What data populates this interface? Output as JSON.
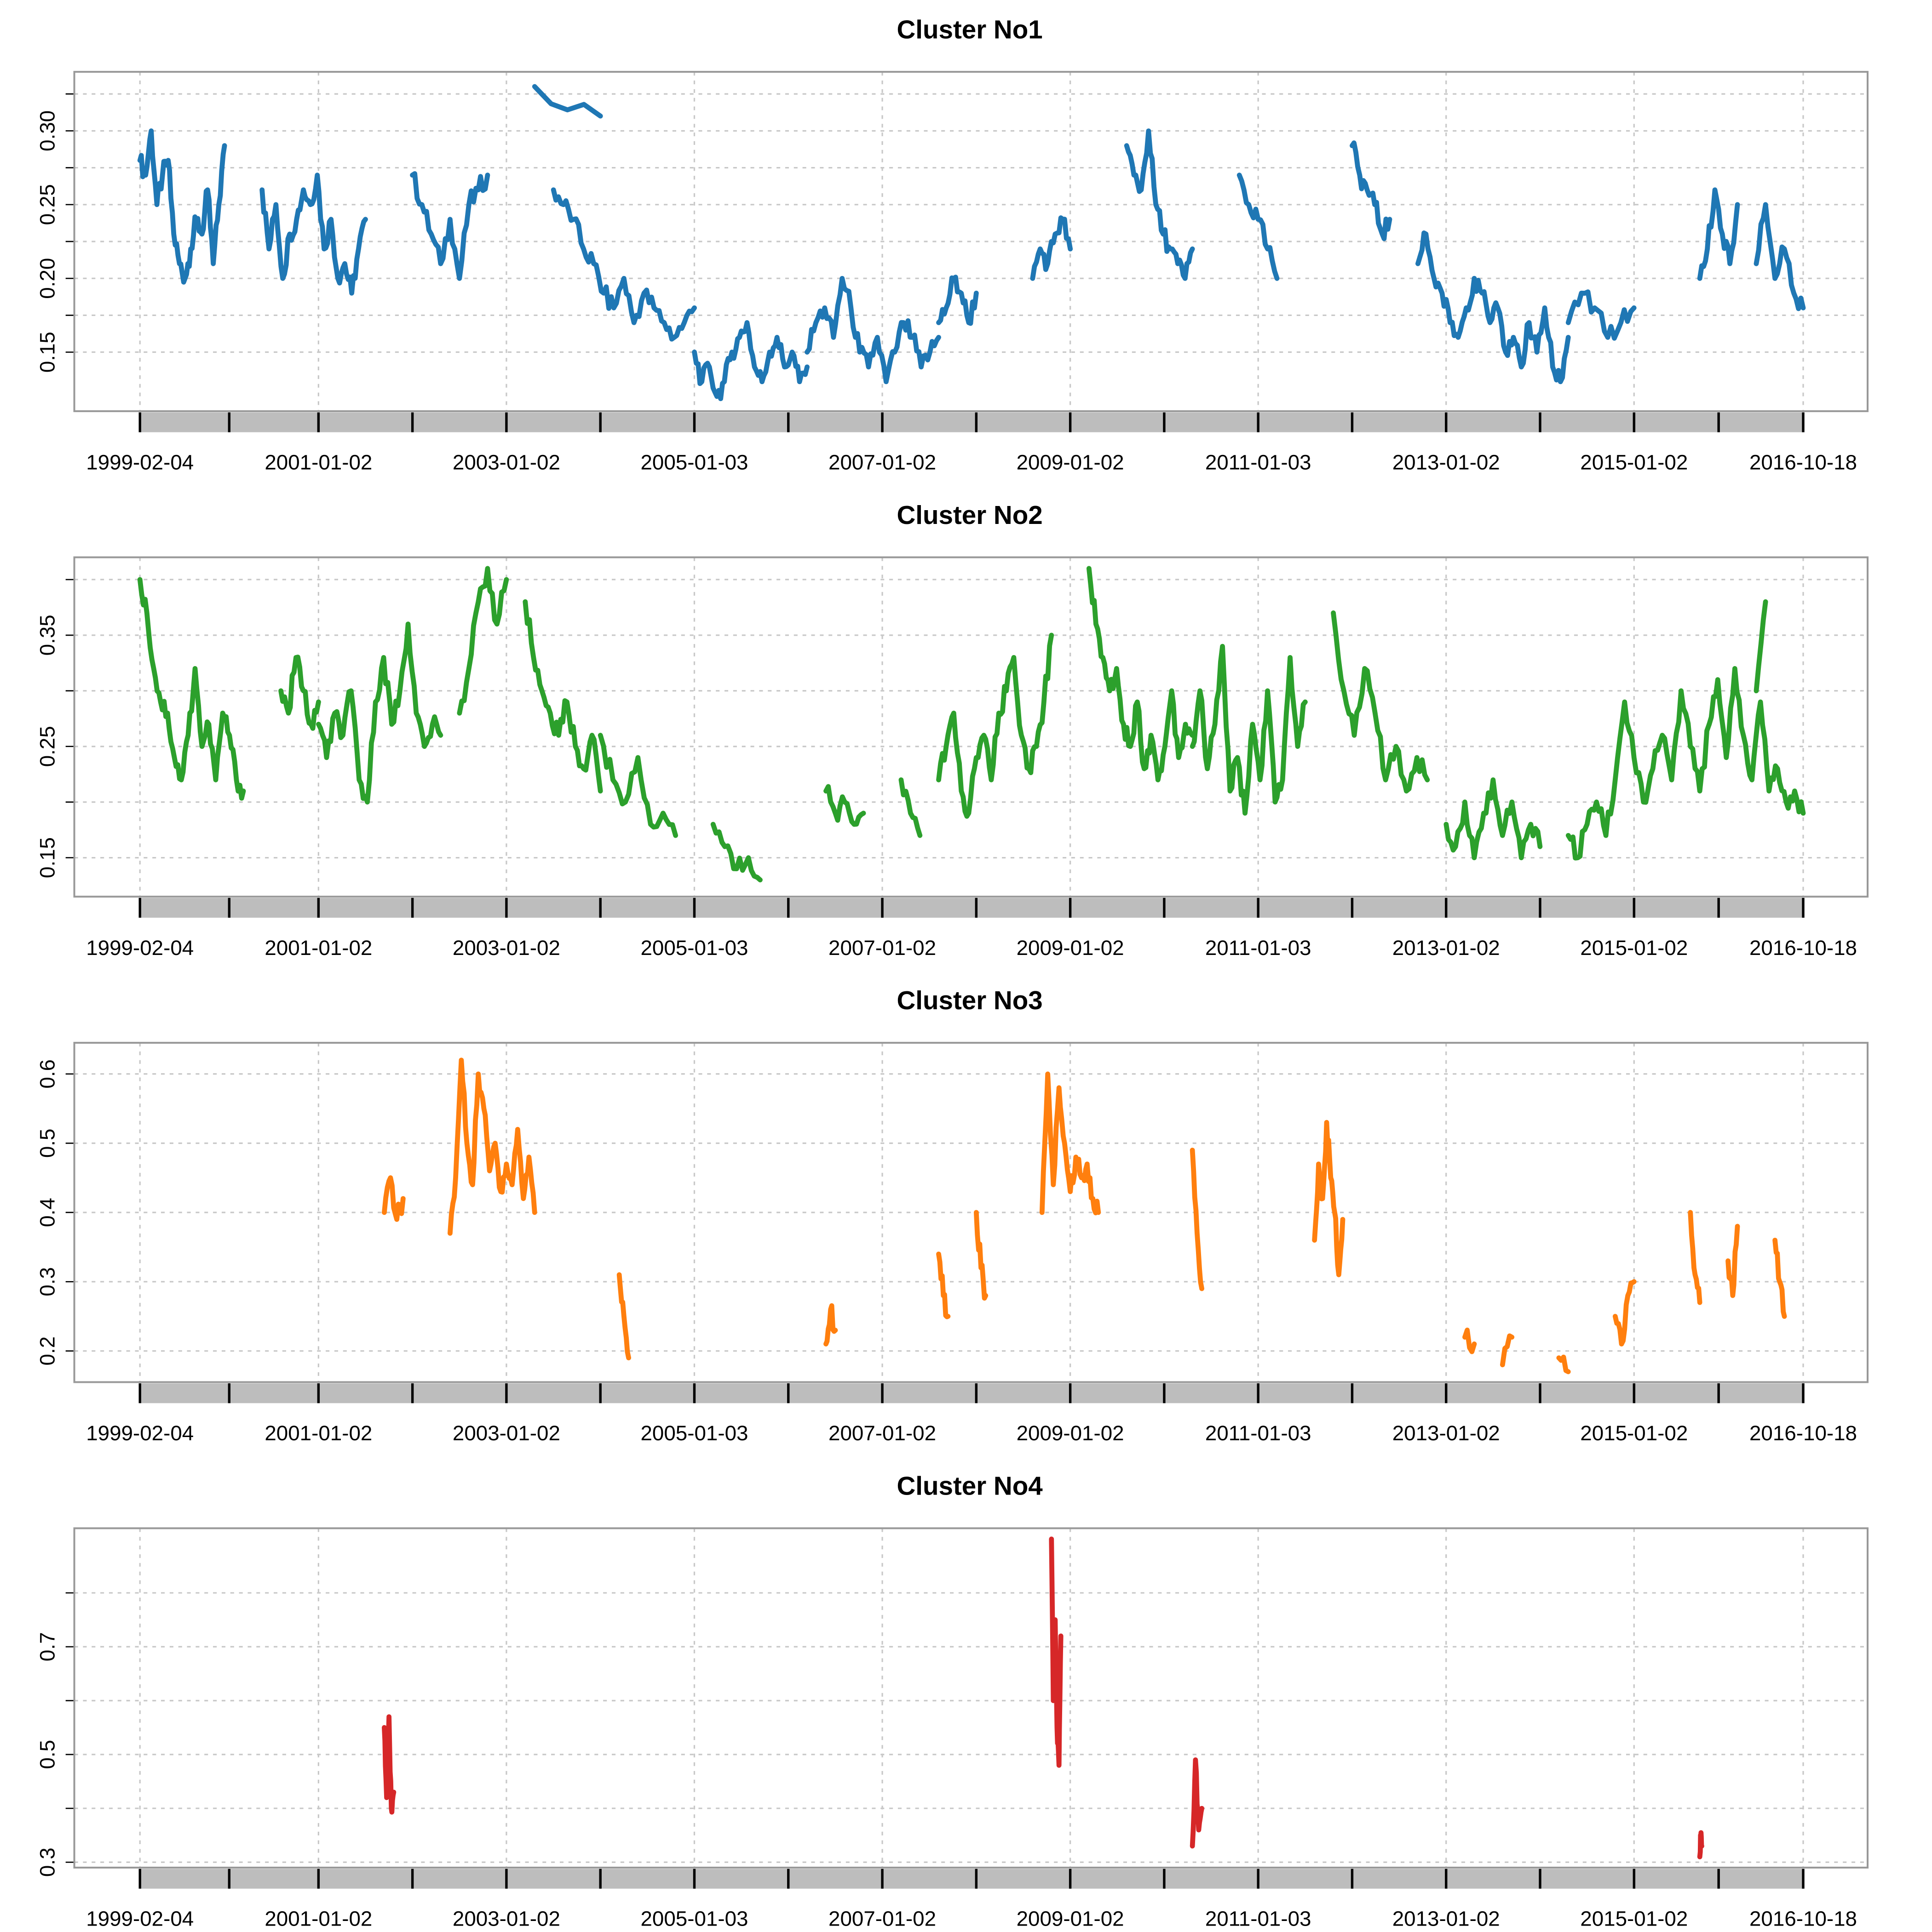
{
  "chart_data": [
    {
      "type": "line",
      "title": "Cluster No1",
      "color": "#1f77b4",
      "ylim": [
        0.11,
        0.34
      ],
      "yticks": [
        "0.15",
        "0.20",
        "0.25",
        "0.30"
      ],
      "xticks": [
        "1999-02-04",
        "2001-01-02",
        "2003-01-02",
        "2005-01-03",
        "2007-01-02",
        "2009-01-02",
        "2011-01-03",
        "2013-01-02",
        "2015-01-02",
        "2016-10-18"
      ],
      "segments": [
        {
          "start": 1999.1,
          "end": 2000.0,
          "y": [
            0.28,
            0.27,
            0.3,
            0.25,
            0.27,
            0.28,
            0.23,
            0.21,
            0.2,
            0.22,
            0.24,
            0.23,
            0.26,
            0.21,
            0.25,
            0.29
          ]
        },
        {
          "start": 2000.4,
          "end": 2001.5,
          "y": [
            0.26,
            0.22,
            0.25,
            0.2,
            0.23,
            0.24,
            0.26,
            0.25,
            0.27,
            0.22,
            0.24,
            0.2,
            0.21,
            0.19,
            0.22,
            0.24
          ]
        },
        {
          "start": 2002.0,
          "end": 2002.8,
          "y": [
            0.27,
            0.25,
            0.23,
            0.21,
            0.24,
            0.2,
            0.25,
            0.26,
            0.27
          ]
        },
        {
          "start": 2003.3,
          "end": 2004.0,
          "y": [
            0.33,
            0.31
          ]
        },
        {
          "start": 2003.5,
          "end": 2005.0,
          "y": [
            0.26,
            0.25,
            0.24,
            0.22,
            0.21,
            0.19,
            0.18,
            0.2,
            0.17,
            0.19,
            0.18,
            0.17,
            0.16,
            0.17,
            0.18
          ]
        },
        {
          "start": 2005.0,
          "end": 2006.2,
          "y": [
            0.15,
            0.13,
            0.14,
            0.12,
            0.13,
            0.15,
            0.16,
            0.17,
            0.14,
            0.13,
            0.15,
            0.16,
            0.14,
            0.15,
            0.13,
            0.14
          ]
        },
        {
          "start": 2006.2,
          "end": 2007.6,
          "y": [
            0.15,
            0.17,
            0.18,
            0.16,
            0.2,
            0.18,
            0.15,
            0.14,
            0.16,
            0.13,
            0.15,
            0.17,
            0.16,
            0.14,
            0.15,
            0.16
          ]
        },
        {
          "start": 2007.6,
          "end": 2008.0,
          "y": [
            0.17,
            0.18,
            0.2,
            0.19,
            0.17,
            0.19
          ]
        },
        {
          "start": 2008.6,
          "end": 2009.0,
          "y": [
            0.2,
            0.22,
            0.21,
            0.23,
            0.24,
            0.22
          ]
        },
        {
          "start": 2009.6,
          "end": 2010.3,
          "y": [
            0.29,
            0.27,
            0.26,
            0.3,
            0.25,
            0.23,
            0.22,
            0.21,
            0.2,
            0.22
          ]
        },
        {
          "start": 2010.8,
          "end": 2011.2,
          "y": [
            0.27,
            0.25,
            0.24,
            0.22,
            0.2
          ]
        },
        {
          "start": 2012.0,
          "end": 2012.4,
          "y": [
            0.29,
            0.27,
            0.26,
            0.25,
            0.23,
            0.24
          ]
        },
        {
          "start": 2012.7,
          "end": 2013.3,
          "y": [
            0.21,
            0.23,
            0.2,
            0.19,
            0.17,
            0.16,
            0.18,
            0.2
          ]
        },
        {
          "start": 2013.3,
          "end": 2014.3,
          "y": [
            0.2,
            0.19,
            0.17,
            0.18,
            0.15,
            0.16,
            0.14,
            0.17,
            0.15,
            0.18,
            0.14,
            0.13,
            0.16
          ]
        },
        {
          "start": 2014.3,
          "end": 2015.0,
          "y": [
            0.17,
            0.19,
            0.18,
            0.16,
            0.17,
            0.18
          ]
        },
        {
          "start": 2015.7,
          "end": 2016.1,
          "y": [
            0.2,
            0.22,
            0.26,
            0.23,
            0.21,
            0.25
          ]
        },
        {
          "start": 2016.3,
          "end": 2016.8,
          "y": [
            0.21,
            0.25,
            0.2,
            0.22,
            0.19,
            0.18
          ]
        }
      ]
    },
    {
      "type": "line",
      "title": "Cluster No2",
      "color": "#2ca02c",
      "ylim": [
        0.115,
        0.42
      ],
      "yticks": [
        "0.15",
        "0.25",
        "0.35"
      ],
      "xticks": [
        "1999-02-04",
        "2001-01-02",
        "2003-01-02",
        "2005-01-03",
        "2007-01-02",
        "2009-01-02",
        "2011-01-03",
        "2013-01-02",
        "2015-01-02",
        "2016-10-18"
      ],
      "segments": [
        {
          "start": 1999.1,
          "end": 2000.2,
          "y": [
            0.4,
            0.37,
            0.32,
            0.29,
            0.28,
            0.24,
            0.22,
            0.26,
            0.32,
            0.25,
            0.27,
            0.22,
            0.28,
            0.26,
            0.22,
            0.21
          ]
        },
        {
          "start": 2000.6,
          "end": 2001.0,
          "y": [
            0.3,
            0.28,
            0.33,
            0.3,
            0.27,
            0.29
          ]
        },
        {
          "start": 2001.0,
          "end": 2002.3,
          "y": [
            0.27,
            0.24,
            0.28,
            0.26,
            0.3,
            0.22,
            0.2,
            0.29,
            0.33,
            0.27,
            0.3,
            0.36,
            0.28,
            0.25,
            0.27,
            0.26
          ]
        },
        {
          "start": 2002.5,
          "end": 2003.0,
          "y": [
            0.28,
            0.32,
            0.38,
            0.41,
            0.36,
            0.4
          ]
        },
        {
          "start": 2003.2,
          "end": 2004.0,
          "y": [
            0.38,
            0.33,
            0.3,
            0.28,
            0.26,
            0.29,
            0.25,
            0.23,
            0.26,
            0.21
          ]
        },
        {
          "start": 2004.0,
          "end": 2004.8,
          "y": [
            0.26,
            0.22,
            0.2,
            0.24,
            0.18,
            0.19,
            0.17
          ]
        },
        {
          "start": 2005.2,
          "end": 2005.7,
          "y": [
            0.18,
            0.16,
            0.14,
            0.15,
            0.13
          ]
        },
        {
          "start": 2006.4,
          "end": 2006.8,
          "y": [
            0.21,
            0.19,
            0.2,
            0.18,
            0.19
          ]
        },
        {
          "start": 2007.2,
          "end": 2007.4,
          "y": [
            0.22,
            0.19,
            0.17
          ]
        },
        {
          "start": 2007.6,
          "end": 2008.8,
          "y": [
            0.22,
            0.25,
            0.28,
            0.21,
            0.19,
            0.24,
            0.26,
            0.22,
            0.28,
            0.3,
            0.33,
            0.26,
            0.23,
            0.25,
            0.29,
            0.35
          ]
        },
        {
          "start": 2009.2,
          "end": 2010.3,
          "y": [
            0.41,
            0.36,
            0.33,
            0.3,
            0.32,
            0.27,
            0.25,
            0.29,
            0.23,
            0.26,
            0.22,
            0.25,
            0.3,
            0.24,
            0.27,
            0.26
          ]
        },
        {
          "start": 2010.3,
          "end": 2011.5,
          "y": [
            0.25,
            0.3,
            0.23,
            0.27,
            0.34,
            0.21,
            0.24,
            0.19,
            0.27,
            0.22,
            0.3,
            0.2,
            0.22,
            0.33,
            0.25,
            0.29
          ]
        },
        {
          "start": 2011.8,
          "end": 2012.8,
          "y": [
            0.37,
            0.3,
            0.26,
            0.32,
            0.28,
            0.22,
            0.25,
            0.21,
            0.24,
            0.22
          ]
        },
        {
          "start": 2013.0,
          "end": 2014.0,
          "y": [
            0.18,
            0.16,
            0.2,
            0.15,
            0.19,
            0.22,
            0.17,
            0.2,
            0.15,
            0.18,
            0.16
          ]
        },
        {
          "start": 2014.3,
          "end": 2015.8,
          "y": [
            0.17,
            0.15,
            0.18,
            0.2,
            0.17,
            0.22,
            0.29,
            0.24,
            0.2,
            0.23,
            0.26,
            0.22,
            0.3,
            0.25,
            0.21,
            0.27
          ]
        },
        {
          "start": 2015.8,
          "end": 2016.8,
          "y": [
            0.27,
            0.31,
            0.24,
            0.32,
            0.26,
            0.22,
            0.29,
            0.21,
            0.23,
            0.2,
            0.21,
            0.19
          ]
        },
        {
          "start": 2016.3,
          "end": 2016.4,
          "y": [
            0.3,
            0.38
          ]
        }
      ]
    },
    {
      "type": "line",
      "title": "Cluster No3",
      "color": "#ff7f0e",
      "ylim": [
        0.155,
        0.645
      ],
      "yticks": [
        "0.2",
        "0.3",
        "0.4",
        "0.5",
        "0.6"
      ],
      "xticks": [
        "1999-02-04",
        "2001-01-02",
        "2003-01-02",
        "2005-01-03",
        "2007-01-02",
        "2009-01-02",
        "2011-01-03",
        "2013-01-02",
        "2015-01-02",
        "2016-10-18"
      ],
      "segments": [
        {
          "start": 2001.7,
          "end": 2001.9,
          "y": [
            0.4,
            0.45,
            0.39,
            0.42
          ]
        },
        {
          "start": 2002.4,
          "end": 2003.3,
          "y": [
            0.37,
            0.45,
            0.62,
            0.5,
            0.44,
            0.6,
            0.55,
            0.46,
            0.5,
            0.43,
            0.47,
            0.44,
            0.52,
            0.42,
            0.48,
            0.4
          ]
        },
        {
          "start": 2004.2,
          "end": 2004.3,
          "y": [
            0.31,
            0.25,
            0.19
          ]
        },
        {
          "start": 2006.4,
          "end": 2006.5,
          "y": [
            0.21,
            0.26,
            0.23
          ]
        },
        {
          "start": 2007.6,
          "end": 2007.7,
          "y": [
            0.34,
            0.28,
            0.25
          ]
        },
        {
          "start": 2008.0,
          "end": 2008.1,
          "y": [
            0.4,
            0.32,
            0.28
          ]
        },
        {
          "start": 2008.7,
          "end": 2009.3,
          "y": [
            0.4,
            0.6,
            0.44,
            0.58,
            0.5,
            0.43,
            0.48,
            0.45,
            0.47,
            0.42,
            0.4
          ]
        },
        {
          "start": 2010.3,
          "end": 2010.4,
          "y": [
            0.49,
            0.37,
            0.29
          ]
        },
        {
          "start": 2011.6,
          "end": 2011.9,
          "y": [
            0.36,
            0.47,
            0.42,
            0.53,
            0.45,
            0.4,
            0.31,
            0.39
          ]
        },
        {
          "start": 2013.2,
          "end": 2013.3,
          "y": [
            0.22,
            0.21
          ]
        },
        {
          "start": 2013.6,
          "end": 2013.7,
          "y": [
            0.18,
            0.22
          ]
        },
        {
          "start": 2014.2,
          "end": 2014.3,
          "y": [
            0.19,
            0.17
          ]
        },
        {
          "start": 2014.8,
          "end": 2015.0,
          "y": [
            0.25,
            0.21,
            0.28,
            0.3
          ]
        },
        {
          "start": 2015.6,
          "end": 2015.7,
          "y": [
            0.4,
            0.31,
            0.27
          ]
        },
        {
          "start": 2016.0,
          "end": 2016.1,
          "y": [
            0.33,
            0.28,
            0.38
          ]
        },
        {
          "start": 2016.5,
          "end": 2016.6,
          "y": [
            0.36,
            0.3,
            0.25
          ]
        }
      ]
    },
    {
      "type": "line",
      "title": "Cluster No4",
      "color": "#d62728",
      "ylim": [
        0.29,
        0.92
      ],
      "yticks": [
        "0.3",
        "0.5",
        "0.7"
      ],
      "xticks": [
        "1999-02-04",
        "2001-01-02",
        "2003-01-02",
        "2005-01-03",
        "2007-01-02",
        "2009-01-02",
        "2011-01-03",
        "2013-01-02",
        "2015-01-02",
        "2016-10-18"
      ],
      "segments": [
        {
          "start": 2001.7,
          "end": 2001.8,
          "y": [
            0.55,
            0.42,
            0.57,
            0.4,
            0.43
          ]
        },
        {
          "start": 2008.8,
          "end": 2008.9,
          "y": [
            0.9,
            0.6,
            0.75,
            0.55,
            0.48,
            0.72
          ]
        },
        {
          "start": 2010.3,
          "end": 2010.4,
          "y": [
            0.33,
            0.49,
            0.36,
            0.4
          ]
        },
        {
          "start": 2015.7,
          "end": 2015.7,
          "y": [
            0.31,
            0.35,
            0.33
          ]
        }
      ]
    }
  ]
}
